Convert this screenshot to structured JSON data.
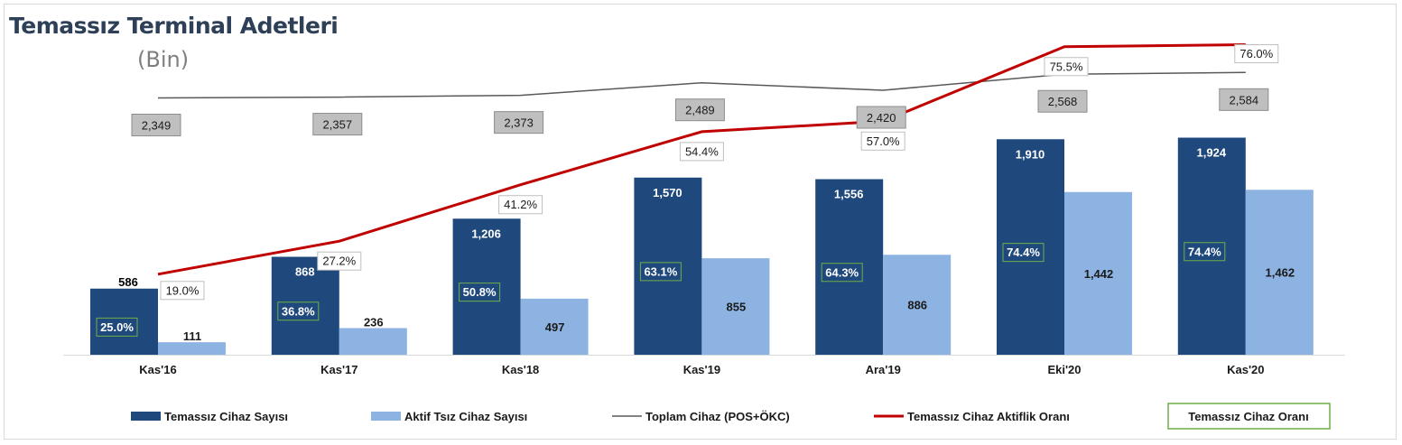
{
  "title": "Temassız Terminal Adetleri",
  "subtitle": "(Bin)",
  "colors": {
    "temassiz": "#1f497d",
    "aktif": "#8db3e2",
    "toplam": "#595959",
    "aktiflik": "#c00000",
    "oran_border": "#70ad47",
    "total_box": "#bfbfbf"
  },
  "chart_data": {
    "type": "bar",
    "categories": [
      "Kas'16",
      "Kas'17",
      "Kas'18",
      "Kas'19",
      "Ara'19",
      "Eki'20",
      "Kas'20"
    ],
    "series": [
      {
        "name": "Temassız Cihaz Sayısı",
        "kind": "bar",
        "values": [
          586,
          868,
          1206,
          1570,
          1556,
          1910,
          1924
        ]
      },
      {
        "name": "Aktif Tsız Cihaz Sayısı",
        "kind": "bar",
        "values": [
          111,
          236,
          497,
          855,
          886,
          1442,
          1462
        ]
      },
      {
        "name": "Toplam Cihaz (POS+ÖKC)",
        "kind": "line",
        "values": [
          2349,
          2357,
          2373,
          2489,
          2420,
          2568,
          2584
        ]
      },
      {
        "name": "Temassız Cihaz Aktiflik Oranı",
        "kind": "line",
        "unit": "%",
        "values": [
          19.0,
          27.2,
          41.2,
          54.4,
          57.0,
          75.5,
          76.0
        ]
      },
      {
        "name": "Temassız Cihaz Oranı",
        "kind": "label",
        "unit": "%",
        "values": [
          25.0,
          36.8,
          50.8,
          63.1,
          64.3,
          74.4,
          74.4
        ]
      }
    ],
    "bar_labels": [
      [
        "586",
        "868",
        "1,206",
        "1,570",
        "1,556",
        "1,910",
        "1,924"
      ],
      [
        "111",
        "236",
        "497",
        "855",
        "886",
        "1,442",
        "1,462"
      ]
    ],
    "total_labels": [
      "2,349",
      "2,357",
      "2,373",
      "2,489",
      "2,420",
      "2,568",
      "2,584"
    ],
    "aktiflik_labels": [
      "19.0%",
      "27.2%",
      "41.2%",
      "54.4%",
      "57.0%",
      "75.5%",
      "76.0%"
    ],
    "oran_labels": [
      "25.0%",
      "36.8%",
      "50.8%",
      "63.1%",
      "64.3%",
      "74.4%",
      "74.4%"
    ],
    "ylim": [
      0,
      2000
    ],
    "grid": false,
    "legend_position": "bottom"
  }
}
